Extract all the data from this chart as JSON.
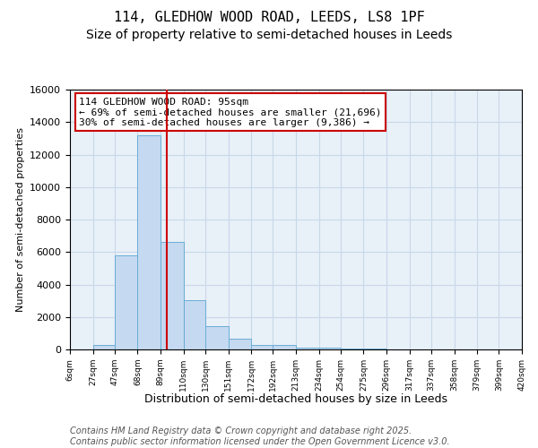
{
  "title1": "114, GLEDHOW WOOD ROAD, LEEDS, LS8 1PF",
  "title2": "Size of property relative to semi-detached houses in Leeds",
  "xlabel": "Distribution of semi-detached houses by size in Leeds",
  "ylabel": "Number of semi-detached properties",
  "bar_color": "#c5d9f0",
  "bar_edge_color": "#6aaed6",
  "bin_edges": [
    6,
    27,
    47,
    68,
    89,
    110,
    130,
    151,
    172,
    192,
    213,
    234,
    254,
    275,
    296,
    317,
    337,
    358,
    379,
    399,
    420
  ],
  "bin_labels": [
    "6sqm",
    "27sqm",
    "47sqm",
    "68sqm",
    "89sqm",
    "110sqm",
    "130sqm",
    "151sqm",
    "172sqm",
    "192sqm",
    "213sqm",
    "234sqm",
    "254sqm",
    "275sqm",
    "296sqm",
    "317sqm",
    "337sqm",
    "358sqm",
    "379sqm",
    "399sqm",
    "420sqm"
  ],
  "bar_heights": [
    0,
    300,
    5800,
    13200,
    6600,
    3050,
    1450,
    650,
    300,
    250,
    100,
    100,
    50,
    50,
    20,
    10,
    5,
    2,
    1,
    0
  ],
  "property_size": 95,
  "red_line_color": "#cc0000",
  "annotation_line1": "114 GLEDHOW WOOD ROAD: 95sqm",
  "annotation_line2": "← 69% of semi-detached houses are smaller (21,696)",
  "annotation_line3": "30% of semi-detached houses are larger (9,386) →",
  "annotation_box_color": "#ffffff",
  "annotation_box_edge": "#cc0000",
  "ylim": [
    0,
    16000
  ],
  "yticks": [
    0,
    2000,
    4000,
    6000,
    8000,
    10000,
    12000,
    14000,
    16000
  ],
  "grid_color": "#c8d8e8",
  "background_color": "#e8f0f8",
  "footer_line1": "Contains HM Land Registry data © Crown copyright and database right 2025.",
  "footer_line2": "Contains public sector information licensed under the Open Government Licence v3.0.",
  "title1_fontsize": 11,
  "title2_fontsize": 10,
  "annotation_fontsize": 8.0,
  "footer_fontsize": 7.0
}
